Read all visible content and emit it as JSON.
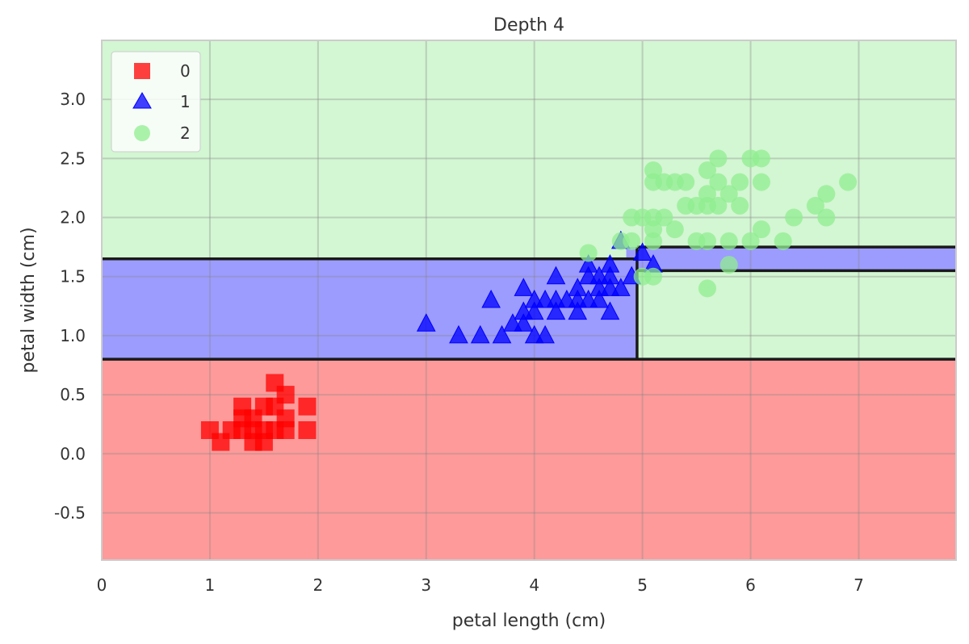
{
  "chart_data": {
    "type": "scatter",
    "title": "Depth 4",
    "xlabel": "petal length (cm)",
    "ylabel": "petal width (cm)",
    "xlim": [
      0,
      7.9
    ],
    "ylim": [
      -0.9,
      3.5
    ],
    "xticks": [
      0,
      1,
      2,
      3,
      4,
      5,
      6,
      7
    ],
    "xtick_labels": [
      "0",
      "1",
      "2",
      "3",
      "4",
      "5",
      "6",
      "7"
    ],
    "yticks": [
      -0.5,
      0.0,
      0.5,
      1.0,
      1.5,
      2.0,
      2.5,
      3.0
    ],
    "ytick_labels": [
      "-0.5",
      "0.0",
      "0.5",
      "1.0",
      "1.5",
      "2.0",
      "2.5",
      "3.0"
    ],
    "grid": true,
    "legend_position": "top-left",
    "regions": [
      {
        "class": "0",
        "x": [
          0,
          7.9
        ],
        "y": [
          -0.9,
          0.8
        ]
      },
      {
        "class": "1",
        "x": [
          0,
          4.95
        ],
        "y": [
          0.8,
          1.65
        ]
      },
      {
        "class": "2",
        "x": [
          0,
          4.95
        ],
        "y": [
          1.65,
          3.5
        ]
      },
      {
        "class": "1",
        "x": [
          4.95,
          7.9
        ],
        "y": [
          1.55,
          1.75
        ]
      },
      {
        "class": "2",
        "x": [
          4.95,
          7.9
        ],
        "y": [
          0.8,
          1.55
        ]
      },
      {
        "class": "2",
        "x": [
          4.95,
          7.9
        ],
        "y": [
          1.75,
          3.5
        ]
      },
      {
        "class": "1",
        "x": [
          4.85,
          4.95
        ],
        "y": [
          1.65,
          1.75
        ]
      }
    ],
    "boundaries": [
      [
        [
          0,
          0.8
        ],
        [
          7.9,
          0.8
        ]
      ],
      [
        [
          0,
          1.65
        ],
        [
          4.95,
          1.65
        ]
      ],
      [
        [
          4.95,
          0.8
        ],
        [
          4.95,
          1.75
        ]
      ],
      [
        [
          4.95,
          1.75
        ],
        [
          7.9,
          1.75
        ]
      ],
      [
        [
          4.95,
          1.55
        ],
        [
          7.9,
          1.55
        ]
      ]
    ],
    "series": [
      {
        "name": "0",
        "marker": "square",
        "color": "#ff0000",
        "points": [
          [
            1.0,
            0.2
          ],
          [
            1.1,
            0.1
          ],
          [
            1.2,
            0.2
          ],
          [
            1.3,
            0.2
          ],
          [
            1.3,
            0.3
          ],
          [
            1.3,
            0.4
          ],
          [
            1.4,
            0.1
          ],
          [
            1.4,
            0.2
          ],
          [
            1.4,
            0.3
          ],
          [
            1.5,
            0.1
          ],
          [
            1.5,
            0.2
          ],
          [
            1.5,
            0.4
          ],
          [
            1.6,
            0.2
          ],
          [
            1.6,
            0.4
          ],
          [
            1.6,
            0.6
          ],
          [
            1.7,
            0.2
          ],
          [
            1.7,
            0.3
          ],
          [
            1.7,
            0.5
          ],
          [
            1.9,
            0.2
          ],
          [
            1.9,
            0.4
          ]
        ]
      },
      {
        "name": "1",
        "marker": "triangle",
        "color": "#0000ff",
        "points": [
          [
            3.0,
            1.1
          ],
          [
            3.3,
            1.0
          ],
          [
            3.5,
            1.0
          ],
          [
            3.6,
            1.3
          ],
          [
            3.7,
            1.0
          ],
          [
            3.8,
            1.1
          ],
          [
            3.9,
            1.1
          ],
          [
            3.9,
            1.2
          ],
          [
            3.9,
            1.4
          ],
          [
            4.0,
            1.0
          ],
          [
            4.0,
            1.2
          ],
          [
            4.0,
            1.3
          ],
          [
            4.1,
            1.0
          ],
          [
            4.1,
            1.3
          ],
          [
            4.2,
            1.2
          ],
          [
            4.2,
            1.3
          ],
          [
            4.2,
            1.5
          ],
          [
            4.3,
            1.3
          ],
          [
            4.4,
            1.2
          ],
          [
            4.4,
            1.3
          ],
          [
            4.4,
            1.4
          ],
          [
            4.5,
            1.3
          ],
          [
            4.5,
            1.5
          ],
          [
            4.5,
            1.6
          ],
          [
            4.6,
            1.3
          ],
          [
            4.6,
            1.4
          ],
          [
            4.6,
            1.5
          ],
          [
            4.7,
            1.2
          ],
          [
            4.7,
            1.4
          ],
          [
            4.7,
            1.5
          ],
          [
            4.7,
            1.6
          ],
          [
            4.8,
            1.4
          ],
          [
            4.8,
            1.8
          ],
          [
            4.9,
            1.5
          ],
          [
            5.0,
            1.7
          ],
          [
            5.1,
            1.6
          ]
        ]
      },
      {
        "name": "2",
        "marker": "circle",
        "color": "#90ee90",
        "points": [
          [
            4.5,
            1.7
          ],
          [
            4.8,
            1.8
          ],
          [
            4.9,
            1.8
          ],
          [
            4.9,
            2.0
          ],
          [
            5.0,
            1.5
          ],
          [
            5.0,
            2.0
          ],
          [
            5.1,
            1.5
          ],
          [
            5.1,
            1.8
          ],
          [
            5.1,
            1.9
          ],
          [
            5.1,
            2.0
          ],
          [
            5.1,
            2.3
          ],
          [
            5.1,
            2.4
          ],
          [
            5.2,
            2.0
          ],
          [
            5.2,
            2.3
          ],
          [
            5.3,
            1.9
          ],
          [
            5.3,
            2.3
          ],
          [
            5.4,
            2.1
          ],
          [
            5.4,
            2.3
          ],
          [
            5.5,
            1.8
          ],
          [
            5.5,
            2.1
          ],
          [
            5.6,
            1.4
          ],
          [
            5.6,
            1.8
          ],
          [
            5.6,
            2.1
          ],
          [
            5.6,
            2.2
          ],
          [
            5.6,
            2.4
          ],
          [
            5.7,
            2.1
          ],
          [
            5.7,
            2.3
          ],
          [
            5.7,
            2.5
          ],
          [
            5.8,
            1.6
          ],
          [
            5.8,
            1.8
          ],
          [
            5.8,
            2.2
          ],
          [
            5.9,
            2.1
          ],
          [
            5.9,
            2.3
          ],
          [
            6.0,
            1.8
          ],
          [
            6.0,
            2.5
          ],
          [
            6.1,
            1.9
          ],
          [
            6.1,
            2.3
          ],
          [
            6.1,
            2.5
          ],
          [
            6.3,
            1.8
          ],
          [
            6.4,
            2.0
          ],
          [
            6.6,
            2.1
          ],
          [
            6.7,
            2.0
          ],
          [
            6.7,
            2.2
          ],
          [
            6.9,
            2.3
          ]
        ]
      }
    ]
  },
  "colors": {
    "class0_region": "#ff9a9a",
    "class1_region": "#9c9cff",
    "class2_region": "#d3f6d3",
    "boundary": "#1a1a1a",
    "grid": "#cfcfcf",
    "frame": "#cccccc"
  }
}
